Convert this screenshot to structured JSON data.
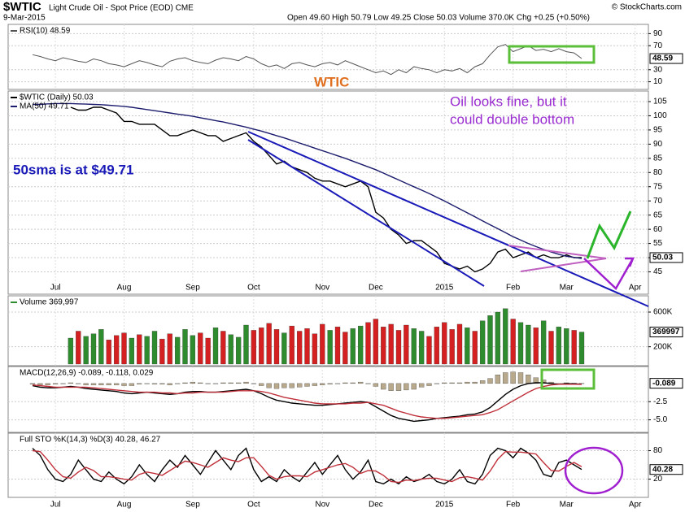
{
  "header": {
    "symbol": "$WTIC",
    "name": "Light Crude Oil - Spot Price (EOD) CME",
    "date": "9-Mar-2015",
    "quote": "Open 49.60  High 50.79  Low 49.25  Close 50.03  Volume 370.0K  Chg +0.25 (+0.50%)",
    "source": "© StockCharts.com"
  },
  "notes": {
    "wtic": "WTIC",
    "oil_1": "Oil looks fine, but it",
    "oil_2": "could double bottom",
    "sma": "50sma is at $49.71"
  },
  "chart_data": [
    {
      "type": "line",
      "ylim": [
        0,
        100
      ],
      "yticks": [
        10,
        30,
        70,
        90
      ],
      "last_label": "48.59",
      "series": [
        {
          "name": "RSI(10) 48.59",
          "color": "#555555",
          "values": [
            55,
            52,
            48,
            45,
            50,
            47,
            44,
            42,
            48,
            45,
            40,
            38,
            35,
            40,
            45,
            42,
            38,
            35,
            44,
            48,
            50,
            45,
            42,
            40,
            46,
            50,
            48,
            45,
            52,
            48,
            40,
            35,
            38,
            32,
            40,
            42,
            38,
            35,
            40,
            42,
            38,
            45,
            40,
            35,
            30,
            25,
            28,
            22,
            30,
            25,
            35,
            32,
            30,
            25,
            30,
            28,
            32,
            25,
            35,
            40,
            55,
            68,
            72,
            60,
            65,
            70,
            62,
            64,
            60,
            65,
            60,
            58,
            48.59,
            null,
            null,
            null,
            null,
            null,
            null,
            null
          ]
        }
      ]
    },
    {
      "type": "line",
      "ylim": [
        42,
        107
      ],
      "yticks": [
        45,
        50,
        55,
        60,
        65,
        70,
        75,
        80,
        85,
        90,
        95,
        100,
        105
      ],
      "last_label": "50.03",
      "categories": [
        null,
        null,
        null,
        "Jul",
        null,
        null,
        null,
        null,
        null,
        null,
        null,
        null,
        "Aug",
        null,
        null,
        null,
        null,
        null,
        null,
        null,
        null,
        "Sep",
        null,
        null,
        null,
        null,
        null,
        null,
        null,
        "Oct",
        null,
        null,
        null,
        null,
        null,
        null,
        null,
        null,
        "Nov",
        null,
        null,
        null,
        null,
        null,
        null,
        "Dec",
        null,
        null,
        null,
        null,
        null,
        null,
        null,
        null,
        "2015",
        null,
        null,
        null,
        null,
        null,
        null,
        null,
        null,
        "Feb",
        null,
        null,
        null,
        null,
        null,
        null,
        "Mar",
        null,
        null,
        null,
        null,
        null,
        null,
        null,
        null,
        "Apr"
      ],
      "series": [
        {
          "name": "$WTIC (Daily) 50.03",
          "color": "#000000",
          "values": [
            null,
            null,
            null,
            null,
            null,
            103,
            102,
            102,
            103,
            103,
            102,
            101,
            98,
            98,
            97,
            97,
            97,
            95,
            93,
            93,
            94,
            95,
            94,
            93,
            93,
            91,
            92,
            93,
            94,
            91,
            89,
            86,
            83,
            84,
            82,
            81,
            80,
            78,
            77,
            77,
            76,
            75,
            76,
            77,
            75,
            66,
            64,
            60,
            58,
            55,
            56,
            56,
            54,
            52,
            48,
            47,
            46,
            47,
            45,
            46,
            48,
            52,
            53,
            50,
            51,
            52,
            50,
            51,
            50,
            50,
            51,
            50,
            50.03,
            null,
            null,
            null,
            null,
            null,
            null,
            null
          ]
        },
        {
          "name": "MA(50) 49.71",
          "color": "#1c1c6e",
          "values": [
            104,
            104,
            104.2,
            104.3,
            104.3,
            104.3,
            104.2,
            104.1,
            104,
            103.9,
            103.7,
            103.5,
            103.3,
            103,
            102.6,
            102.2,
            101.8,
            101.4,
            101,
            100.6,
            100.2,
            99.8,
            99.3,
            98.8,
            98.3,
            97.8,
            97.2,
            96.6,
            96,
            95.3,
            94.6,
            93.8,
            93,
            92.2,
            91.3,
            90.4,
            89.5,
            88.6,
            87.7,
            86.8,
            85.9,
            85,
            84,
            83,
            82,
            81,
            79.8,
            78.6,
            77.4,
            76.2,
            75,
            73.8,
            72.6,
            71.3,
            70,
            68.6,
            67.2,
            65.8,
            64.4,
            63,
            61.6,
            60.2,
            58.8,
            57.4,
            56.2,
            55,
            53.9,
            52.9,
            52,
            51.2,
            50.5,
            50.1,
            49.71,
            null,
            null,
            null,
            null,
            null,
            null,
            null
          ]
        }
      ]
    },
    {
      "type": "bar",
      "ylim": [
        0,
        750000
      ],
      "yticks": [
        {
          "value": 200000,
          "label": "200K"
        },
        {
          "value": 600000,
          "label": "600K"
        }
      ],
      "last_label": "369997",
      "series": [
        {
          "name": "Volume 369,997",
          "color": "#2e8b2e",
          "down_color": "#d42020",
          "values": [
            null,
            null,
            null,
            null,
            null,
            300000,
            380000,
            320000,
            350000,
            400000,
            280000,
            330000,
            360000,
            300000,
            340000,
            320000,
            380000,
            290000,
            350000,
            310000,
            400000,
            330000,
            360000,
            300000,
            420000,
            380000,
            340000,
            310000,
            450000,
            390000,
            420000,
            470000,
            400000,
            360000,
            440000,
            380000,
            410000,
            350000,
            460000,
            390000,
            430000,
            370000,
            410000,
            440000,
            480000,
            520000,
            430000,
            460000,
            390000,
            450000,
            410000,
            380000,
            320000,
            430000,
            480000,
            400000,
            460000,
            420000,
            380000,
            500000,
            560000,
            600000,
            640000,
            520000,
            480000,
            450000,
            420000,
            500000,
            380000,
            430000,
            410000,
            390000,
            369997,
            null,
            null,
            null,
            null,
            null,
            null,
            null
          ]
        }
      ]
    },
    {
      "type": "line",
      "ylim": [
        -6.5,
        2
      ],
      "yticks": [
        {
          "value": -5,
          "label": "-5.0"
        },
        -2.5
      ],
      "last_label": "-0.089",
      "label": "MACD(12,26,9) -0.089, -0.118, 0.029",
      "series": [
        {
          "kind": "bar",
          "color": "#b8a98c",
          "values": [
            -0.1,
            -0.2,
            -0.2,
            -0.1,
            0,
            0.1,
            0,
            -0.2,
            -0.2,
            -0.2,
            -0.2,
            -0.2,
            -0.3,
            -0.3,
            -0.1,
            0,
            -0.1,
            -0.1,
            -0.2,
            0,
            0.1,
            0.2,
            0.1,
            0,
            0,
            0.1,
            0.1,
            0.1,
            0.2,
            0,
            -0.3,
            -0.6,
            -0.7,
            -0.6,
            -0.6,
            -0.5,
            -0.4,
            -0.3,
            -0.2,
            -0.1,
            0,
            0.1,
            0.1,
            0.2,
            0,
            -0.4,
            -0.8,
            -1,
            -1,
            -0.9,
            -0.8,
            -0.5,
            -0.3,
            0,
            0.1,
            0.1,
            0.1,
            0.2,
            0.2,
            0.4,
            0.7,
            1.2,
            1.5,
            1.6,
            1.5,
            1.2,
            0.8,
            0.5,
            0.2,
            0,
            0.1,
            0.05,
            0.029,
            null,
            null,
            null,
            null,
            null,
            null,
            null
          ]
        },
        {
          "color": "#000000",
          "values": [
            -0.3,
            -0.5,
            -0.6,
            -0.6,
            -0.5,
            -0.4,
            -0.5,
            -0.7,
            -0.8,
            -0.9,
            -1,
            -1.1,
            -1.3,
            -1.4,
            -1.3,
            -1.2,
            -1.3,
            -1.4,
            -1.5,
            -1.4,
            -1.2,
            -1.1,
            -1.1,
            -1.2,
            -1.2,
            -1.1,
            -1,
            -0.9,
            -0.8,
            -1,
            -1.4,
            -1.9,
            -2.3,
            -2.5,
            -2.7,
            -2.8,
            -2.9,
            -3,
            -3,
            -2.9,
            -2.8,
            -2.7,
            -2.6,
            -2.5,
            -2.6,
            -3.2,
            -3.8,
            -4.4,
            -4.8,
            -5,
            -5.2,
            -5.1,
            -5,
            -4.8,
            -4.7,
            -4.6,
            -4.5,
            -4.3,
            -4.2,
            -3.9,
            -3.3,
            -2.4,
            -1.5,
            -0.8,
            -0.3,
            0,
            0.1,
            0.1,
            0,
            -0.1,
            0,
            -0.05,
            -0.089,
            null,
            null,
            null,
            null,
            null,
            null,
            null
          ]
        },
        {
          "color": "#c0303a",
          "values": [
            -0.2,
            -0.3,
            -0.4,
            -0.5,
            -0.5,
            -0.5,
            -0.5,
            -0.5,
            -0.6,
            -0.7,
            -0.8,
            -0.9,
            -1,
            -1.1,
            -1.2,
            -1.2,
            -1.2,
            -1.3,
            -1.3,
            -1.4,
            -1.3,
            -1.3,
            -1.2,
            -1.2,
            -1.2,
            -1.2,
            -1.1,
            -1,
            -1,
            -1,
            -1.1,
            -1.3,
            -1.6,
            -1.9,
            -2.1,
            -2.3,
            -2.5,
            -2.7,
            -2.8,
            -2.8,
            -2.8,
            -2.8,
            -2.7,
            -2.7,
            -2.6,
            -2.8,
            -3,
            -3.4,
            -3.8,
            -4.1,
            -4.4,
            -4.6,
            -4.7,
            -4.8,
            -4.8,
            -4.7,
            -4.6,
            -4.5,
            -4.4,
            -4.3,
            -4,
            -3.6,
            -3,
            -2.4,
            -1.8,
            -1.2,
            -0.7,
            -0.4,
            -0.2,
            -0.1,
            -0.1,
            -0.1,
            -0.118,
            null,
            null,
            null,
            null,
            null,
            null,
            null
          ]
        }
      ]
    },
    {
      "type": "line",
      "ylim": [
        -15,
        110
      ],
      "yticks": [
        20,
        80
      ],
      "last_label": "40.28",
      "label": "Full STO %K(14,3) %D(3) 40.28, 46.27",
      "categories": [
        null,
        null,
        null,
        "Jul",
        null,
        null,
        null,
        null,
        null,
        null,
        null,
        null,
        "Aug",
        null,
        null,
        null,
        null,
        null,
        null,
        null,
        null,
        "Sep",
        null,
        null,
        null,
        null,
        null,
        null,
        null,
        "Oct",
        null,
        null,
        null,
        null,
        null,
        null,
        null,
        null,
        "Nov",
        null,
        null,
        null,
        null,
        null,
        null,
        "Dec",
        null,
        null,
        null,
        null,
        null,
        null,
        null,
        null,
        "2015",
        null,
        null,
        null,
        null,
        null,
        null,
        null,
        null,
        "Feb",
        null,
        null,
        null,
        null,
        null,
        null,
        "Mar",
        null,
        null,
        null,
        null,
        null,
        null,
        null,
        null,
        "Apr"
      ],
      "series": [
        {
          "color": "#000000",
          "values": [
            85,
            70,
            40,
            20,
            15,
            30,
            60,
            40,
            20,
            15,
            35,
            20,
            10,
            25,
            50,
            30,
            15,
            40,
            60,
            45,
            70,
            50,
            30,
            55,
            80,
            60,
            40,
            70,
            85,
            40,
            15,
            25,
            15,
            40,
            25,
            15,
            35,
            55,
            30,
            50,
            70,
            40,
            20,
            35,
            60,
            15,
            10,
            20,
            10,
            25,
            15,
            20,
            30,
            15,
            10,
            20,
            40,
            15,
            10,
            30,
            70,
            85,
            80,
            65,
            85,
            75,
            60,
            30,
            25,
            55,
            60,
            50,
            40.28,
            null,
            null,
            null,
            null,
            null,
            null,
            null
          ]
        },
        {
          "color": "#c0303a",
          "values": [
            80,
            78,
            60,
            40,
            25,
            22,
            35,
            45,
            38,
            25,
            25,
            23,
            20,
            18,
            30,
            35,
            32,
            28,
            38,
            48,
            58,
            55,
            50,
            45,
            55,
            65,
            60,
            57,
            65,
            65,
            47,
            28,
            20,
            25,
            27,
            27,
            25,
            35,
            40,
            45,
            50,
            53,
            45,
            32,
            38,
            37,
            28,
            15,
            13,
            18,
            17,
            20,
            22,
            22,
            18,
            15,
            23,
            25,
            22,
            18,
            37,
            62,
            78,
            77,
            77,
            75,
            73,
            55,
            38,
            37,
            47,
            55,
            46.27,
            null,
            null,
            null,
            null,
            null,
            null,
            null
          ]
        }
      ]
    }
  ]
}
